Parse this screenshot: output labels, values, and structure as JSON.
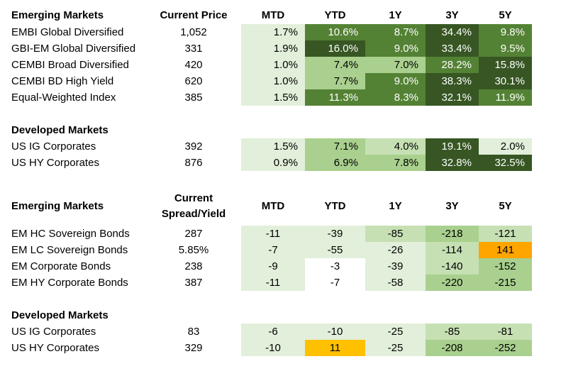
{
  "colors": {
    "dark": "#375623",
    "medium_dark": "#548235",
    "medium": "#a9d08e",
    "light": "#c6e0b4",
    "lightest": "#e2efda",
    "orange": "#ffa500",
    "gold": "#ffc000",
    "white": "#ffffff"
  },
  "returns": {
    "columns": [
      "MTD",
      "YTD",
      "1Y",
      "3Y",
      "5Y"
    ],
    "em": {
      "title": "Emerging Markets",
      "price_header": "Current Price",
      "rows": [
        {
          "name": "EMBI Global Diversified",
          "price": "1,052",
          "cells": [
            {
              "v": "1.7%",
              "c": "lightest"
            },
            {
              "v": "10.6%",
              "c": "medium_dark"
            },
            {
              "v": "8.7%",
              "c": "medium_dark"
            },
            {
              "v": "34.4%",
              "c": "dark"
            },
            {
              "v": "9.8%",
              "c": "medium_dark"
            }
          ]
        },
        {
          "name": "GBI-EM Global Diversified",
          "price": "331",
          "cells": [
            {
              "v": "1.9%",
              "c": "lightest"
            },
            {
              "v": "16.0%",
              "c": "dark"
            },
            {
              "v": "9.0%",
              "c": "medium_dark"
            },
            {
              "v": "33.4%",
              "c": "dark"
            },
            {
              "v": "9.5%",
              "c": "medium_dark"
            }
          ]
        },
        {
          "name": "CEMBI Broad Diversified",
          "price": "420",
          "cells": [
            {
              "v": "1.0%",
              "c": "lightest"
            },
            {
              "v": "7.4%",
              "c": "medium"
            },
            {
              "v": "7.0%",
              "c": "medium"
            },
            {
              "v": "28.2%",
              "c": "medium_dark"
            },
            {
              "v": "15.8%",
              "c": "dark"
            }
          ]
        },
        {
          "name": "CEMBI BD High Yield",
          "price": "620",
          "cells": [
            {
              "v": "1.0%",
              "c": "lightest"
            },
            {
              "v": "7.7%",
              "c": "medium"
            },
            {
              "v": "9.0%",
              "c": "medium_dark"
            },
            {
              "v": "38.3%",
              "c": "dark"
            },
            {
              "v": "30.1%",
              "c": "dark"
            }
          ]
        },
        {
          "name": "Equal-Weighted Index",
          "price": "385",
          "cells": [
            {
              "v": "1.5%",
              "c": "lightest"
            },
            {
              "v": "11.3%",
              "c": "medium_dark"
            },
            {
              "v": "8.3%",
              "c": "medium_dark"
            },
            {
              "v": "32.1%",
              "c": "dark"
            },
            {
              "v": "11.9%",
              "c": "medium_dark"
            }
          ]
        }
      ]
    },
    "dm": {
      "title": "Developed Markets",
      "rows": [
        {
          "name": "US IG Corporates",
          "price": "392",
          "cells": [
            {
              "v": "1.5%",
              "c": "lightest"
            },
            {
              "v": "7.1%",
              "c": "medium"
            },
            {
              "v": "4.0%",
              "c": "light"
            },
            {
              "v": "19.1%",
              "c": "dark"
            },
            {
              "v": "2.0%",
              "c": "lightest"
            }
          ]
        },
        {
          "name": "US HY Corporates",
          "price": "876",
          "cells": [
            {
              "v": "0.9%",
              "c": "lightest"
            },
            {
              "v": "6.9%",
              "c": "medium"
            },
            {
              "v": "7.8%",
              "c": "medium"
            },
            {
              "v": "32.8%",
              "c": "dark"
            },
            {
              "v": "32.5%",
              "c": "dark"
            }
          ]
        }
      ]
    }
  },
  "spreads": {
    "columns": [
      "MTD",
      "YTD",
      "1Y",
      "3Y",
      "5Y"
    ],
    "em": {
      "title": "Emerging Markets",
      "price_header_line1": "Current",
      "price_header_line2": "Spread/Yield",
      "rows": [
        {
          "name": "EM HC Sovereign Bonds",
          "price": "287",
          "cells": [
            {
              "v": "-11",
              "c": "lightest"
            },
            {
              "v": "-39",
              "c": "lightest"
            },
            {
              "v": "-85",
              "c": "light"
            },
            {
              "v": "-218",
              "c": "medium"
            },
            {
              "v": "-121",
              "c": "light"
            }
          ]
        },
        {
          "name": "EM LC Sovereign Bonds",
          "price": "5.85%",
          "cells": [
            {
              "v": "-7",
              "c": "lightest"
            },
            {
              "v": "-55",
              "c": "lightest"
            },
            {
              "v": "-26",
              "c": "lightest"
            },
            {
              "v": "-114",
              "c": "light"
            },
            {
              "v": "141",
              "c": "orange"
            }
          ]
        },
        {
          "name": "EM Corporate Bonds",
          "price": "238",
          "cells": [
            {
              "v": "-9",
              "c": "lightest"
            },
            {
              "v": "-3",
              "c": "white"
            },
            {
              "v": "-39",
              "c": "lightest"
            },
            {
              "v": "-140",
              "c": "light"
            },
            {
              "v": "-152",
              "c": "medium"
            }
          ]
        },
        {
          "name": "EM HY Corporate Bonds",
          "price": "387",
          "cells": [
            {
              "v": "-11",
              "c": "lightest"
            },
            {
              "v": "-7",
              "c": "white"
            },
            {
              "v": "-58",
              "c": "lightest"
            },
            {
              "v": "-220",
              "c": "medium"
            },
            {
              "v": "-215",
              "c": "medium"
            }
          ]
        }
      ]
    },
    "dm": {
      "title": "Developed Markets",
      "rows": [
        {
          "name": "US IG Corporates",
          "price": "83",
          "cells": [
            {
              "v": "-6",
              "c": "lightest"
            },
            {
              "v": "-10",
              "c": "lightest"
            },
            {
              "v": "-25",
              "c": "lightest"
            },
            {
              "v": "-85",
              "c": "light"
            },
            {
              "v": "-81",
              "c": "light"
            }
          ]
        },
        {
          "name": "US HY Corporates",
          "price": "329",
          "cells": [
            {
              "v": "-10",
              "c": "lightest"
            },
            {
              "v": "11",
              "c": "gold"
            },
            {
              "v": "-25",
              "c": "lightest"
            },
            {
              "v": "-208",
              "c": "medium"
            },
            {
              "v": "-252",
              "c": "medium"
            }
          ]
        }
      ]
    }
  }
}
